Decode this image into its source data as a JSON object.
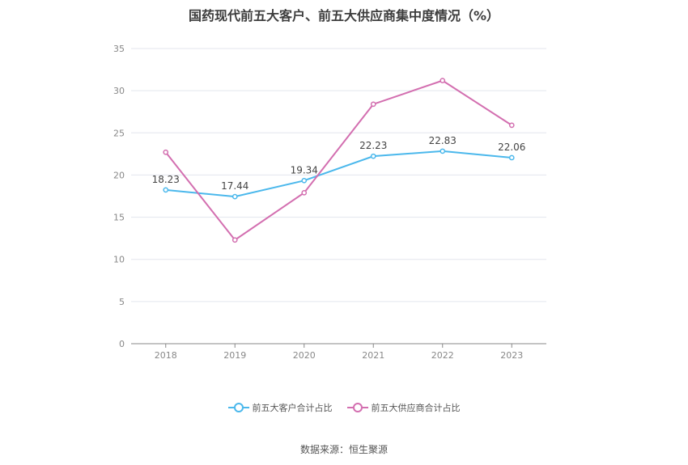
{
  "chart_data": {
    "type": "line",
    "title": "国药现代前五大客户、前五大供应商集中度情况（%）",
    "categories": [
      "2018",
      "2019",
      "2020",
      "2021",
      "2022",
      "2023"
    ],
    "ylim": [
      0,
      35
    ],
    "yticks": [
      "0",
      "5",
      "10",
      "15",
      "20",
      "25",
      "30",
      "35"
    ],
    "grid": true,
    "legend_position": "bottom",
    "series": [
      {
        "name": "前五大客户合计占比",
        "color": "#4bb8ec",
        "values": [
          18.23,
          17.44,
          19.34,
          22.23,
          22.83,
          22.06
        ],
        "data_labels": [
          "18.23",
          "17.44",
          "19.34",
          "22.23",
          "22.83",
          "22.06"
        ]
      },
      {
        "name": "前五大供应商合计占比",
        "color": "#d36fb0",
        "values": [
          22.7,
          12.3,
          17.9,
          28.4,
          31.2,
          25.9
        ]
      }
    ]
  },
  "source": "数据来源：恒生聚源"
}
